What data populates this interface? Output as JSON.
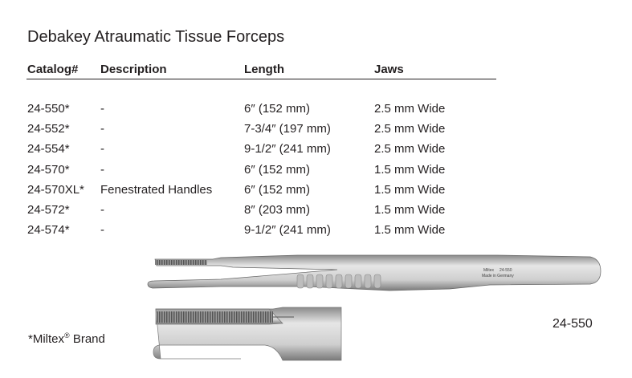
{
  "title": "Debakey Atraumatic Tissue Forceps",
  "columns": [
    "Catalog#",
    "Description",
    "Length",
    "Jaws"
  ],
  "rows": [
    {
      "catalog": "24-550*",
      "description": "-",
      "length": "6″ (152 mm)",
      "jaws": "2.5 mm Wide"
    },
    {
      "catalog": "24-552*",
      "description": "-",
      "length": "7-3/4″ (197 mm)",
      "jaws": "2.5 mm Wide"
    },
    {
      "catalog": "24-554*",
      "description": "-",
      "length": "9-1/2″ (241 mm)",
      "jaws": "2.5 mm Wide"
    },
    {
      "catalog": "24-570*",
      "description": "-",
      "length": "6″ (152 mm)",
      "jaws": "1.5 mm Wide"
    },
    {
      "catalog": "24-570XL*",
      "description": "Fenestrated Handles",
      "length": "6″ (152 mm)",
      "jaws": "1.5 mm Wide"
    },
    {
      "catalog": "24-572*",
      "description": "-",
      "length": "8″ (203 mm)",
      "jaws": "1.5 mm Wide"
    },
    {
      "catalog": "24-574*",
      "description": "-",
      "length": "9-1/2″ (241 mm)",
      "jaws": "1.5 mm Wide"
    }
  ],
  "footnote": {
    "prefix": "*Miltex",
    "reg": "®",
    "suffix": " Brand"
  },
  "image_caption": "24-550",
  "engraving": {
    "brand": "Miltex",
    "model": "24-550",
    "text": "Made in Germany"
  }
}
